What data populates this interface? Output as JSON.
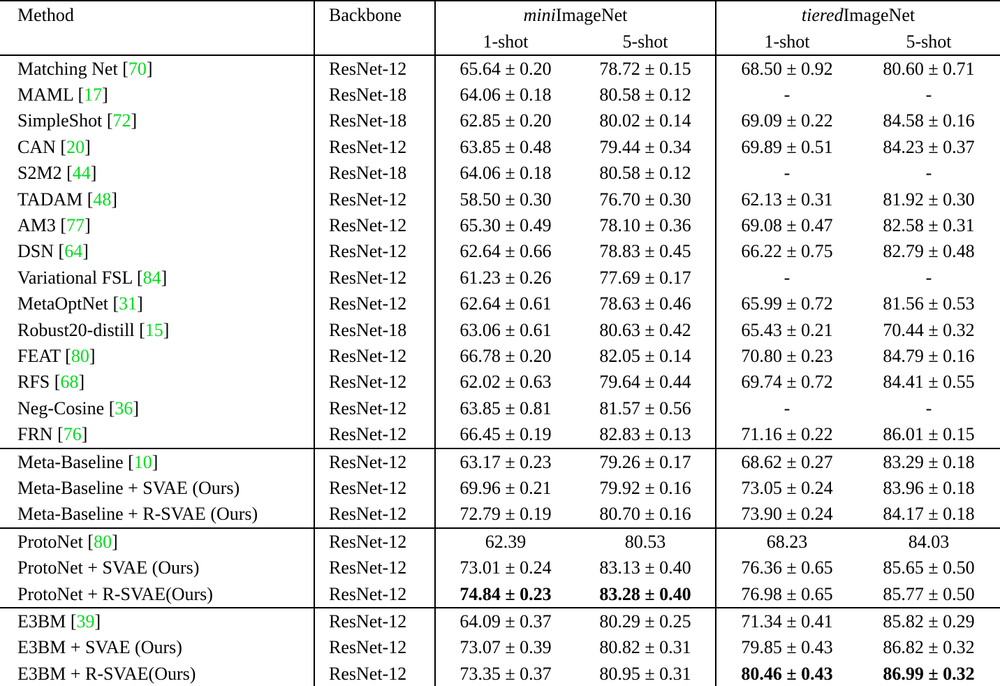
{
  "colors": {
    "citation": "#00dd1c",
    "text": "#000000",
    "rule": "#000000"
  },
  "header": {
    "method": "Method",
    "backbone": "Backbone",
    "mini_italic": "mini",
    "mini_rest": "ImageNet",
    "tiered_italic": "tiered",
    "tiered_rest": "ImageNet",
    "sub": [
      "1-shot",
      "5-shot",
      "1-shot",
      "5-shot"
    ]
  },
  "sections": [
    {
      "rows": [
        {
          "method": "Matching Net",
          "cite": "70",
          "backbone": "ResNet-12",
          "values": [
            "65.64 ± 0.20",
            "78.72 ± 0.15",
            "68.50 ± 0.92",
            "80.60 ± 0.71"
          ],
          "bold": []
        },
        {
          "method": "MAML",
          "cite": "17",
          "backbone": "ResNet-18",
          "values": [
            "64.06 ± 0.18",
            "80.58 ± 0.12",
            "-",
            "-"
          ],
          "bold": []
        },
        {
          "method": "SimpleShot",
          "cite": "72",
          "backbone": "ResNet-18",
          "values": [
            "62.85 ± 0.20",
            "80.02 ± 0.14",
            "69.09 ± 0.22",
            "84.58 ± 0.16"
          ],
          "bold": []
        },
        {
          "method": "CAN",
          "cite": "20",
          "backbone": "ResNet-12",
          "values": [
            "63.85 ± 0.48",
            "79.44 ± 0.34",
            "69.89 ± 0.51",
            "84.23 ± 0.37"
          ],
          "bold": []
        },
        {
          "method": "S2M2",
          "cite": "44",
          "backbone": "ResNet-18",
          "values": [
            "64.06 ± 0.18",
            "80.58 ± 0.12",
            "-",
            "-"
          ],
          "bold": []
        },
        {
          "method": "TADAM",
          "cite": "48",
          "backbone": "ResNet-12",
          "values": [
            "58.50 ± 0.30",
            "76.70 ± 0.30",
            "62.13 ± 0.31",
            "81.92 ± 0.30"
          ],
          "bold": []
        },
        {
          "method": "AM3",
          "cite": "77",
          "backbone": "ResNet-12",
          "values": [
            "65.30 ± 0.49",
            "78.10 ± 0.36",
            "69.08 ± 0.47",
            "82.58 ± 0.31"
          ],
          "bold": []
        },
        {
          "method": "DSN",
          "cite": "64",
          "backbone": "ResNet-12",
          "values": [
            "62.64 ± 0.66",
            "78.83 ± 0.45",
            "66.22 ± 0.75",
            "82.79 ± 0.48"
          ],
          "bold": []
        },
        {
          "method": "Variational FSL",
          "cite": "84",
          "backbone": "ResNet-12",
          "values": [
            "61.23 ± 0.26",
            "77.69 ± 0.17",
            "-",
            "-"
          ],
          "bold": []
        },
        {
          "method": "MetaOptNet",
          "cite": "31",
          "backbone": "ResNet-12",
          "values": [
            "62.64 ± 0.61",
            "78.63 ± 0.46",
            "65.99 ± 0.72",
            "81.56 ± 0.53"
          ],
          "bold": []
        },
        {
          "method": "Robust20-distill",
          "cite": "15",
          "backbone": "ResNet-18",
          "values": [
            "63.06 ± 0.61",
            "80.63 ± 0.42",
            "65.43 ± 0.21",
            "70.44 ± 0.32"
          ],
          "bold": []
        },
        {
          "method": "FEAT",
          "cite": "80",
          "backbone": "ResNet-12",
          "values": [
            "66.78 ± 0.20",
            "82.05 ± 0.14",
            "70.80 ± 0.23",
            "84.79 ± 0.16"
          ],
          "bold": []
        },
        {
          "method": "RFS",
          "cite": "68",
          "backbone": "ResNet-12",
          "values": [
            "62.02 ± 0.63",
            "79.64 ± 0.44",
            "69.74 ± 0.72",
            "84.41 ± 0.55"
          ],
          "bold": []
        },
        {
          "method": "Neg-Cosine",
          "cite": "36",
          "backbone": "ResNet-12",
          "values": [
            "63.85 ± 0.81",
            "81.57 ± 0.56",
            "-",
            "-"
          ],
          "bold": []
        },
        {
          "method": "FRN",
          "cite": "76",
          "backbone": "ResNet-12",
          "values": [
            "66.45 ± 0.19",
            "82.83 ± 0.13",
            "71.16 ± 0.22",
            "86.01 ± 0.15"
          ],
          "bold": []
        }
      ]
    },
    {
      "rows": [
        {
          "method": "Meta-Baseline",
          "cite": "10",
          "backbone": "ResNet-12",
          "values": [
            "63.17 ± 0.23",
            "79.26 ± 0.17",
            "68.62 ± 0.27",
            "83.29 ± 0.18"
          ],
          "bold": []
        },
        {
          "method": "Meta-Baseline + SVAE (Ours)",
          "cite": null,
          "backbone": "ResNet-12",
          "values": [
            "69.96 ± 0.21",
            "79.92 ± 0.16",
            "73.05 ± 0.24",
            "83.96 ± 0.18"
          ],
          "bold": []
        },
        {
          "method": "Meta-Baseline + R-SVAE (Ours)",
          "cite": null,
          "backbone": "ResNet-12",
          "values": [
            "72.79 ± 0.19",
            "80.70 ± 0.16",
            "73.90 ± 0.24",
            "84.17 ± 0.18"
          ],
          "bold": []
        }
      ]
    },
    {
      "rows": [
        {
          "method": "ProtoNet",
          "cite": "80",
          "backbone": "ResNet-12",
          "values": [
            "62.39",
            "80.53",
            "68.23",
            "84.03"
          ],
          "bold": []
        },
        {
          "method": "ProtoNet + SVAE (Ours)",
          "cite": null,
          "backbone": "ResNet-12",
          "values": [
            "73.01 ± 0.24",
            "83.13 ± 0.40",
            "76.36 ± 0.65",
            "85.65 ± 0.50"
          ],
          "bold": []
        },
        {
          "method": "ProtoNet + R-SVAE(Ours)",
          "cite": null,
          "backbone": "ResNet-12",
          "values": [
            "74.84 ± 0.23",
            "83.28 ± 0.40",
            "76.98 ± 0.65",
            "85.77 ± 0.50"
          ],
          "bold": [
            0,
            1
          ]
        }
      ]
    },
    {
      "rows": [
        {
          "method": "E3BM",
          "cite": "39",
          "backbone": "ResNet-12",
          "values": [
            "64.09 ± 0.37",
            "80.29 ± 0.25",
            "71.34 ± 0.41",
            "85.82 ± 0.29"
          ],
          "bold": []
        },
        {
          "method": "E3BM + SVAE (Ours)",
          "cite": null,
          "backbone": "ResNet-12",
          "values": [
            "73.07 ± 0.39",
            "80.82 ± 0.31",
            "79.85 ± 0.43",
            "86.82 ± 0.32"
          ],
          "bold": []
        },
        {
          "method": "E3BM + R-SVAE(Ours)",
          "cite": null,
          "backbone": "ResNet-12",
          "values": [
            "73.35 ± 0.37",
            "80.95 ± 0.31",
            "80.46 ± 0.43",
            "86.99 ± 0.32"
          ],
          "bold": [
            2,
            3
          ]
        }
      ]
    }
  ]
}
